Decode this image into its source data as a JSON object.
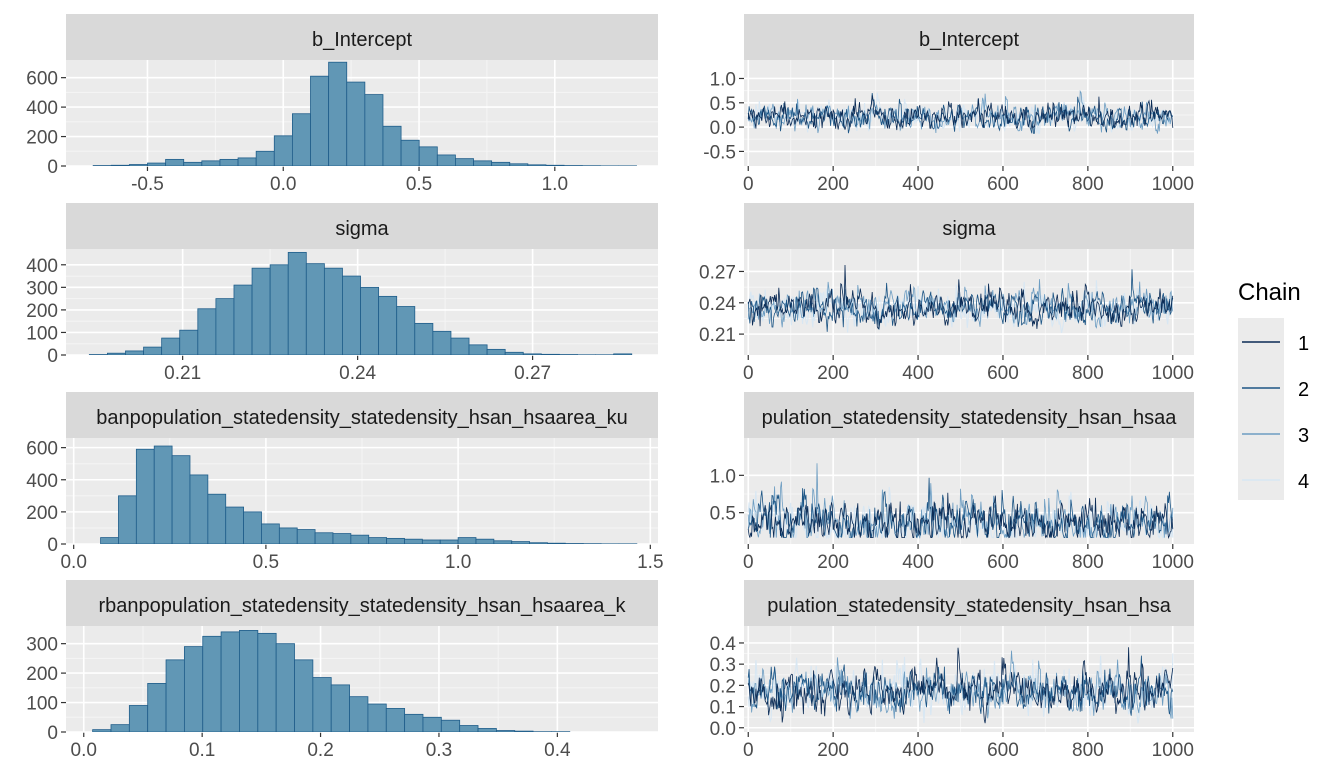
{
  "legend": {
    "title": "Chain",
    "items": [
      {
        "label": "1",
        "color": "#0b2b55"
      },
      {
        "label": "2",
        "color": "#1c5585"
      },
      {
        "label": "3",
        "color": "#6d9dc2"
      },
      {
        "label": "4",
        "color": "#d8e7f3"
      }
    ]
  },
  "colors": {
    "panel_bg": "#ebebeb",
    "strip_bg": "#d9d9d9",
    "grid_major": "#ffffff",
    "bar_fill": "#6197b5",
    "bar_stroke": "#1f5d8a"
  },
  "chart_data": [
    {
      "type": "bar",
      "strip_label": "b_Intercept",
      "xlim": [
        -0.8,
        1.38
      ],
      "ylim": [
        0,
        720
      ],
      "x_ticks": [
        -0.5,
        0.0,
        0.5,
        1.0
      ],
      "x_tick_labels": [
        "-0.5",
        "0.0",
        "0.5",
        "1.0"
      ],
      "y_ticks": [
        0,
        200,
        400,
        600
      ],
      "y_tick_labels": [
        "0",
        "200",
        "400",
        "600"
      ],
      "bins": {
        "start": -0.7,
        "width": 0.0667
      },
      "values": [
        3,
        5,
        10,
        20,
        45,
        25,
        35,
        45,
        55,
        100,
        205,
        355,
        610,
        705,
        570,
        485,
        270,
        175,
        130,
        75,
        50,
        35,
        25,
        15,
        8,
        5,
        3,
        2,
        1,
        1
      ]
    },
    {
      "type": "line",
      "strip_label": "b_Intercept",
      "xlim": [
        -10,
        1050
      ],
      "ylim": [
        -0.8,
        1.38
      ],
      "x_ticks": [
        0,
        200,
        400,
        600,
        800,
        1000
      ],
      "x_tick_labels": [
        "0",
        "200",
        "400",
        "600",
        "800",
        "1000"
      ],
      "y_ticks": [
        -0.5,
        0.0,
        0.5,
        1.0
      ],
      "y_tick_labels": [
        "-0.5",
        "0.0",
        "0.5",
        "1.0"
      ],
      "series_center": 0.2,
      "series_spread": 0.22
    },
    {
      "type": "bar",
      "strip_label": "sigma",
      "xlim": [
        0.19,
        0.2915
      ],
      "ylim": [
        0,
        470
      ],
      "x_ticks": [
        0.21,
        0.24,
        0.27
      ],
      "x_tick_labels": [
        "0.21",
        "0.24",
        "0.27"
      ],
      "y_ticks": [
        0,
        100,
        200,
        300,
        400
      ],
      "y_tick_labels": [
        "0",
        "100",
        "200",
        "300",
        "400"
      ],
      "bins": {
        "start": 0.194,
        "width": 0.0031
      },
      "values": [
        2,
        8,
        18,
        35,
        75,
        110,
        205,
        250,
        310,
        385,
        400,
        455,
        405,
        385,
        350,
        300,
        260,
        215,
        140,
        105,
        75,
        45,
        25,
        12,
        5,
        3,
        2,
        1,
        1,
        5
      ]
    },
    {
      "type": "line",
      "strip_label": "sigma",
      "xlim": [
        -10,
        1050
      ],
      "ylim": [
        0.19,
        0.2915
      ],
      "x_ticks": [
        0,
        200,
        400,
        600,
        800,
        1000
      ],
      "x_tick_labels": [
        "0",
        "200",
        "400",
        "600",
        "800",
        "1000"
      ],
      "y_ticks": [
        0.21,
        0.24,
        0.27
      ],
      "y_tick_labels": [
        "0.21",
        "0.24",
        "0.27"
      ],
      "series_center": 0.234,
      "series_spread": 0.013
    },
    {
      "type": "bar",
      "strip_label": "banpopulation_statedensity_statedensity_hsan_hsaarea_ku",
      "xlim": [
        -0.02,
        1.52
      ],
      "ylim": [
        0,
        660
      ],
      "x_ticks": [
        0.0,
        0.5,
        1.0,
        1.5
      ],
      "x_tick_labels": [
        "0.0",
        "0.5",
        "1.0",
        "1.5"
      ],
      "y_ticks": [
        0,
        200,
        400,
        600
      ],
      "y_tick_labels": [
        "0",
        "200",
        "400",
        "600"
      ],
      "bins": {
        "start": 0.07,
        "width": 0.0465
      },
      "values": [
        40,
        300,
        590,
        610,
        550,
        430,
        310,
        230,
        200,
        125,
        100,
        90,
        70,
        65,
        55,
        40,
        35,
        30,
        25,
        25,
        40,
        30,
        20,
        15,
        8,
        5,
        3,
        2,
        1,
        1
      ]
    },
    {
      "type": "line",
      "strip_label": "pulation_statedensity_statedensity_hsan_hsaa",
      "xlim": [
        -10,
        1050
      ],
      "ylim": [
        0.08,
        1.5
      ],
      "x_ticks": [
        0,
        200,
        400,
        600,
        800,
        1000
      ],
      "x_tick_labels": [
        "0",
        "200",
        "400",
        "600",
        "800",
        "1000"
      ],
      "y_ticks": [
        0.5,
        1.0
      ],
      "y_tick_labels": [
        "0.5",
        "1.0"
      ],
      "series_center": 0.35,
      "series_spread": 0.25
    },
    {
      "type": "bar",
      "strip_label": "rbanpopulation_statedensity_statedensity_hsan_hsaarea_k",
      "xlim": [
        -0.015,
        0.485
      ],
      "ylim": [
        0,
        360
      ],
      "x_ticks": [
        0.0,
        0.1,
        0.2,
        0.3,
        0.4
      ],
      "x_tick_labels": [
        "0.0",
        "0.1",
        "0.2",
        "0.3",
        "0.4"
      ],
      "y_ticks": [
        0,
        100,
        200,
        300
      ],
      "y_tick_labels": [
        "0",
        "100",
        "200",
        "300"
      ],
      "bins": {
        "start": 0.0075,
        "width": 0.0155
      },
      "values": [
        8,
        25,
        90,
        165,
        245,
        290,
        325,
        340,
        345,
        335,
        300,
        245,
        185,
        160,
        120,
        95,
        80,
        60,
        50,
        40,
        22,
        12,
        5,
        3,
        1,
        1,
        0,
        0,
        0,
        0
      ]
    },
    {
      "type": "line",
      "strip_label": "pulation_statedensity_statedensity_hsan_hsa",
      "xlim": [
        -10,
        1050
      ],
      "ylim": [
        -0.02,
        0.48
      ],
      "x_ticks": [
        0,
        200,
        400,
        600,
        800,
        1000
      ],
      "x_tick_labels": [
        "0",
        "200",
        "400",
        "600",
        "800",
        "1000"
      ],
      "y_ticks": [
        0.0,
        0.1,
        0.2,
        0.3,
        0.4
      ],
      "y_tick_labels": [
        "0.0",
        "0.1",
        "0.2",
        "0.3",
        "0.4"
      ],
      "series_center": 0.17,
      "series_spread": 0.085
    }
  ]
}
